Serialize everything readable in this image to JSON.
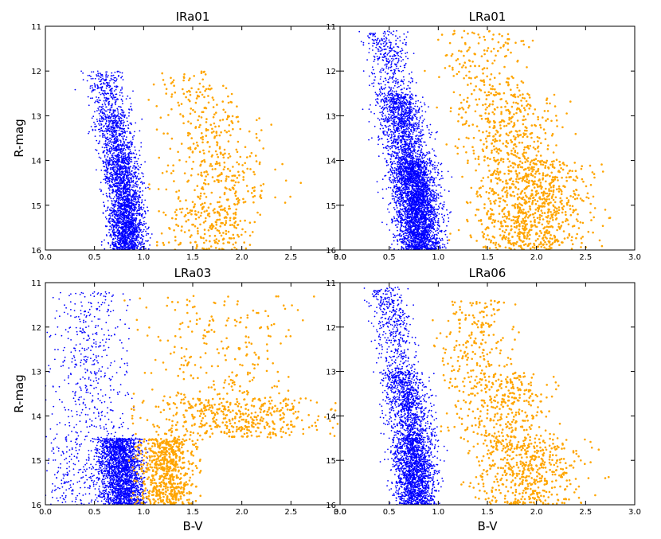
{
  "figure": {
    "row_ylabel": "R-mag",
    "col_xlabel": "B-V"
  },
  "chart_data": [
    {
      "type": "scatter",
      "title": "IRa01",
      "xlabel": "",
      "ylabel": "R-mag",
      "xlim": [
        0.0,
        3.0
      ],
      "ylim": [
        16,
        11
      ],
      "xticks": [
        "0.0",
        "0.5",
        "1.0",
        "1.5",
        "2.0",
        "2.5",
        "3.0"
      ],
      "yticks": [
        "11",
        "12",
        "13",
        "14",
        "15",
        "16"
      ],
      "series": [
        {
          "color": "#0000ff",
          "marker_radius": 0.9,
          "sample_points": [
            [
              0.45,
              12.1
            ],
            [
              0.55,
              12.8
            ],
            [
              0.62,
              13.5
            ],
            [
              0.68,
              14.2
            ],
            [
              0.74,
              14.9
            ],
            [
              0.8,
              15.4
            ],
            [
              0.9,
              15.9
            ]
          ],
          "clusters": [
            {
              "x": [
                0.25,
                0.9
              ],
              "y": [
                12.0,
                13.0
              ],
              "n": 300,
              "x_shift_per_mag": 0.12,
              "spread_x": 0.18
            },
            {
              "x": [
                0.4,
                0.95
              ],
              "y": [
                13.0,
                14.0
              ],
              "n": 600,
              "x_shift_per_mag": 0.1,
              "spread_x": 0.16
            },
            {
              "x": [
                0.5,
                1.0
              ],
              "y": [
                14.0,
                15.0
              ],
              "n": 900,
              "x_shift_per_mag": 0.08,
              "spread_x": 0.16
            },
            {
              "x": [
                0.55,
                1.05
              ],
              "y": [
                15.0,
                16.0
              ],
              "n": 1200,
              "x_shift_per_mag": 0.05,
              "spread_x": 0.16
            }
          ]
        },
        {
          "color": "#ffa500",
          "marker_radius": 1.3,
          "sample_points": [
            [
              1.2,
              12.2
            ],
            [
              1.4,
              13.0
            ],
            [
              1.5,
              13.8
            ],
            [
              1.6,
              14.6
            ],
            [
              1.7,
              15.5
            ],
            [
              2.3,
              13.2
            ],
            [
              2.6,
              14.5
            ]
          ],
          "clusters": [
            {
              "x": [
                1.1,
                1.9
              ],
              "y": [
                12.0,
                13.0
              ],
              "n": 90,
              "x_shift_per_mag": 0.0,
              "spread_x": 0.35
            },
            {
              "x": [
                1.1,
                2.2
              ],
              "y": [
                13.0,
                14.0
              ],
              "n": 130,
              "x_shift_per_mag": 0.02,
              "spread_x": 0.45
            },
            {
              "x": [
                1.1,
                2.5
              ],
              "y": [
                14.0,
                15.0
              ],
              "n": 170,
              "x_shift_per_mag": 0.03,
              "spread_x": 0.5
            },
            {
              "x": [
                1.1,
                2.2
              ],
              "y": [
                15.0,
                16.0
              ],
              "n": 220,
              "x_shift_per_mag": 0.02,
              "spread_x": 0.4
            }
          ]
        }
      ]
    },
    {
      "type": "scatter",
      "title": "LRa01",
      "xlabel": "",
      "ylabel": "",
      "xlim": [
        0.0,
        3.0
      ],
      "ylim": [
        16,
        11
      ],
      "xticks": [
        "0.0",
        "0.5",
        "1.0",
        "1.5",
        "2.0",
        "2.5",
        "3.0"
      ],
      "yticks": [
        "11",
        "12",
        "13",
        "14",
        "15",
        "16"
      ],
      "series": [
        {
          "color": "#0000ff",
          "marker_radius": 0.9,
          "sample_points": [
            [
              0.3,
              11.5
            ],
            [
              0.45,
              12.4
            ],
            [
              0.55,
              13.3
            ],
            [
              0.62,
              14.2
            ],
            [
              0.7,
              15.0
            ],
            [
              0.82,
              15.8
            ]
          ],
          "clusters": [
            {
              "x": [
                0.15,
                0.75
              ],
              "y": [
                11.1,
                12.5
              ],
              "n": 350,
              "x_shift_per_mag": 0.08,
              "spread_x": 0.2
            },
            {
              "x": [
                0.2,
                0.95
              ],
              "y": [
                12.5,
                14.0
              ],
              "n": 1200,
              "x_shift_per_mag": 0.08,
              "spread_x": 0.2
            },
            {
              "x": [
                0.3,
                1.15
              ],
              "y": [
                14.0,
                16.0
              ],
              "n": 3200,
              "x_shift_per_mag": 0.05,
              "spread_x": 0.2
            }
          ]
        },
        {
          "color": "#ffa500",
          "marker_radius": 1.3,
          "sample_points": [
            [
              1.0,
              11.3
            ],
            [
              1.3,
              12.6
            ],
            [
              1.35,
              13.7
            ],
            [
              1.4,
              14.8
            ],
            [
              1.45,
              15.6
            ],
            [
              2.2,
              13.0
            ],
            [
              2.7,
              15.1
            ]
          ],
          "clusters": [
            {
              "x": [
                0.9,
                2.0
              ],
              "y": [
                11.1,
                12.5
              ],
              "n": 150,
              "x_shift_per_mag": 0.03,
              "spread_x": 0.4
            },
            {
              "x": [
                0.95,
                2.4
              ],
              "y": [
                12.5,
                14.0
              ],
              "n": 350,
              "x_shift_per_mag": 0.03,
              "spread_x": 0.45
            },
            {
              "x": [
                1.1,
                2.75
              ],
              "y": [
                14.0,
                16.0
              ],
              "n": 900,
              "x_shift_per_mag": 0.02,
              "spread_x": 0.5
            }
          ]
        }
      ]
    },
    {
      "type": "scatter",
      "title": "LRa03",
      "xlabel": "B-V",
      "ylabel": "R-mag",
      "xlim": [
        0.0,
        3.0
      ],
      "ylim": [
        16,
        11
      ],
      "xticks": [
        "0.0",
        "0.5",
        "1.0",
        "1.5",
        "2.0",
        "2.5",
        "3.0"
      ],
      "yticks": [
        "11",
        "12",
        "13",
        "14",
        "15",
        "16"
      ],
      "series": [
        {
          "color": "#0000ff",
          "marker_radius": 0.9,
          "sample_points": [
            [
              0.1,
              11.8
            ],
            [
              0.3,
              12.9
            ],
            [
              0.5,
              13.8
            ],
            [
              0.65,
              14.8
            ],
            [
              0.8,
              15.5
            ],
            [
              0.9,
              15.9
            ]
          ],
          "clusters": [
            {
              "x": [
                0.05,
                0.85
              ],
              "y": [
                11.2,
                14.5
              ],
              "n": 450,
              "x_shift_per_mag": 0.0,
              "spread_x": 0.35
            },
            {
              "x": [
                0.5,
                1.0
              ],
              "y": [
                14.5,
                16.0
              ],
              "n": 2200,
              "x_shift_per_mag": 0.03,
              "spread_x": 0.2
            },
            {
              "x": [
                0.05,
                0.55
              ],
              "y": [
                14.5,
                16.0
              ],
              "n": 200,
              "x_shift_per_mag": 0.0,
              "spread_x": 0.3
            }
          ]
        },
        {
          "color": "#ffa500",
          "marker_radius": 1.3,
          "sample_points": [
            [
              0.9,
              13.5
            ],
            [
              1.0,
              15.0
            ],
            [
              1.2,
              12.8
            ],
            [
              1.6,
              13.9
            ],
            [
              2.0,
              14.3
            ],
            [
              2.5,
              14.2
            ],
            [
              2.9,
              14.4
            ]
          ],
          "clusters": [
            {
              "x": [
                0.8,
                2.8
              ],
              "y": [
                11.3,
                13.6
              ],
              "n": 220,
              "x_shift_per_mag": 0.0,
              "spread_x": 0.7
            },
            {
              "x": [
                0.85,
                3.0
              ],
              "y": [
                13.6,
                14.5
              ],
              "n": 450,
              "x_shift_per_mag": 0.0,
              "spread_x": 0.8
            },
            {
              "x": [
                0.9,
                1.55
              ],
              "y": [
                14.5,
                16.0
              ],
              "n": 650,
              "x_shift_per_mag": 0.0,
              "spread_x": 0.25
            }
          ]
        }
      ]
    },
    {
      "type": "scatter",
      "title": "LRa06",
      "xlabel": "B-V",
      "ylabel": "",
      "xlim": [
        0.0,
        3.0
      ],
      "ylim": [
        16,
        11
      ],
      "xticks": [
        "0.0",
        "0.5",
        "1.0",
        "1.5",
        "2.0",
        "2.5",
        "3.0"
      ],
      "yticks": [
        "11",
        "12",
        "13",
        "14",
        "15",
        "16"
      ],
      "series": [
        {
          "color": "#0000ff",
          "marker_radius": 0.9,
          "sample_points": [
            [
              0.25,
              11.4
            ],
            [
              0.4,
              12.6
            ],
            [
              0.55,
              13.6
            ],
            [
              0.65,
              14.5
            ],
            [
              0.75,
              15.3
            ],
            [
              0.9,
              15.9
            ]
          ],
          "clusters": [
            {
              "x": [
                0.2,
                0.75
              ],
              "y": [
                11.1,
                13.0
              ],
              "n": 450,
              "x_shift_per_mag": 0.08,
              "spread_x": 0.18
            },
            {
              "x": [
                0.3,
                0.95
              ],
              "y": [
                13.0,
                14.5
              ],
              "n": 1000,
              "x_shift_per_mag": 0.08,
              "spread_x": 0.2
            },
            {
              "x": [
                0.4,
                1.05
              ],
              "y": [
                14.5,
                16.0
              ],
              "n": 1700,
              "x_shift_per_mag": 0.04,
              "spread_x": 0.18
            }
          ]
        },
        {
          "color": "#ffa500",
          "marker_radius": 1.3,
          "sample_points": [
            [
              1.15,
              11.5
            ],
            [
              1.3,
              12.6
            ],
            [
              1.35,
              13.5
            ],
            [
              1.4,
              14.4
            ],
            [
              1.45,
              15.3
            ],
            [
              2.2,
              13.4
            ],
            [
              2.7,
              15.4
            ]
          ],
          "clusters": [
            {
              "x": [
                0.95,
                1.8
              ],
              "y": [
                11.4,
                13.0
              ],
              "n": 180,
              "x_shift_per_mag": 0.0,
              "spread_x": 0.35
            },
            {
              "x": [
                0.95,
                2.3
              ],
              "y": [
                13.0,
                14.5
              ],
              "n": 350,
              "x_shift_per_mag": 0.0,
              "spread_x": 0.45
            },
            {
              "x": [
                1.05,
                2.75
              ],
              "y": [
                14.5,
                16.0
              ],
              "n": 520,
              "x_shift_per_mag": 0.0,
              "spread_x": 0.5
            }
          ]
        }
      ]
    }
  ]
}
